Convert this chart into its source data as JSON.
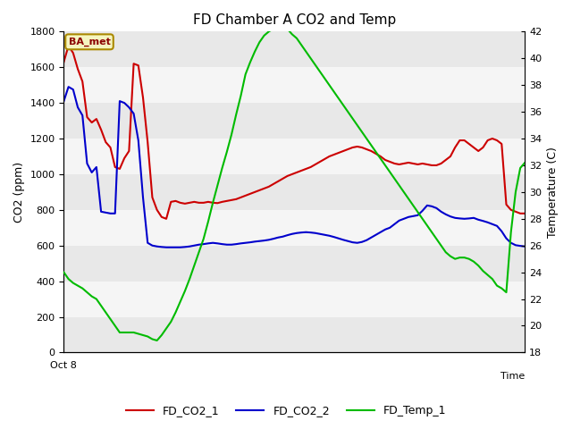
{
  "title": "FD Chamber A CO2 and Temp",
  "ylabel_left": "CO2 (ppm)",
  "ylabel_right": "Temperature (C)",
  "legend_label": "BA_met",
  "series_labels": [
    "FD_CO2_1",
    "FD_CO2_2",
    "FD_Temp_1"
  ],
  "colors": [
    "#cc0000",
    "#0000cc",
    "#00bb00"
  ],
  "ylim_left": [
    0,
    1800
  ],
  "ylim_right": [
    18,
    42
  ],
  "yticks_left": [
    0,
    200,
    400,
    600,
    800,
    1000,
    1200,
    1400,
    1600,
    1800
  ],
  "yticks_right": [
    18,
    20,
    22,
    24,
    26,
    28,
    30,
    32,
    34,
    36,
    38,
    40,
    42
  ],
  "x_label_start": "Oct 8",
  "background_color": "#ffffff",
  "plot_bg_color": "#ffffff",
  "band_colors": [
    "#e8e8e8",
    "#f5f5f5"
  ],
  "FD_CO2_1": [
    1630,
    1720,
    1680,
    1590,
    1520,
    1320,
    1290,
    1310,
    1250,
    1180,
    1150,
    1040,
    1030,
    1090,
    1130,
    1620,
    1610,
    1430,
    1180,
    870,
    800,
    760,
    750,
    845,
    850,
    840,
    835,
    840,
    845,
    840,
    840,
    845,
    840,
    838,
    845,
    850,
    855,
    860,
    870,
    880,
    890,
    900,
    910,
    920,
    930,
    945,
    960,
    975,
    990,
    1000,
    1010,
    1020,
    1030,
    1040,
    1055,
    1070,
    1085,
    1100,
    1110,
    1120,
    1130,
    1140,
    1150,
    1155,
    1150,
    1140,
    1130,
    1115,
    1100,
    1080,
    1070,
    1060,
    1055,
    1060,
    1065,
    1060,
    1055,
    1060,
    1055,
    1050,
    1050,
    1060,
    1080,
    1100,
    1150,
    1190,
    1190,
    1170,
    1150,
    1130,
    1150,
    1190,
    1200,
    1190,
    1170,
    830,
    800,
    790,
    780,
    780
  ],
  "FD_CO2_2": [
    1410,
    1490,
    1475,
    1375,
    1330,
    1060,
    1010,
    1040,
    790,
    785,
    780,
    780,
    1410,
    1400,
    1375,
    1340,
    1190,
    870,
    615,
    600,
    595,
    592,
    590,
    590,
    590,
    590,
    592,
    595,
    600,
    605,
    608,
    612,
    615,
    612,
    608,
    605,
    605,
    608,
    612,
    615,
    618,
    622,
    625,
    628,
    632,
    638,
    645,
    650,
    658,
    665,
    670,
    673,
    675,
    673,
    670,
    665,
    660,
    655,
    648,
    640,
    632,
    625,
    618,
    615,
    620,
    630,
    645,
    660,
    675,
    690,
    700,
    720,
    740,
    750,
    760,
    765,
    770,
    795,
    825,
    820,
    810,
    790,
    775,
    763,
    755,
    752,
    750,
    752,
    755,
    745,
    738,
    730,
    720,
    710,
    680,
    640,
    615,
    602,
    598,
    595
  ],
  "FD_Temp_1": [
    24.0,
    23.5,
    23.2,
    23.0,
    22.8,
    22.5,
    22.2,
    22.0,
    21.5,
    21.0,
    20.5,
    20.0,
    19.5,
    19.5,
    19.5,
    19.5,
    19.4,
    19.3,
    19.2,
    19.0,
    18.9,
    19.3,
    19.8,
    20.3,
    21.0,
    21.8,
    22.6,
    23.5,
    24.5,
    25.5,
    26.5,
    27.8,
    29.2,
    30.5,
    31.8,
    33.0,
    34.3,
    35.8,
    37.2,
    38.8,
    39.7,
    40.5,
    41.2,
    41.7,
    42.0,
    42.2,
    42.5,
    42.5,
    42.2,
    41.8,
    41.5,
    41.0,
    40.5,
    40.0,
    39.5,
    39.0,
    38.5,
    38.0,
    37.5,
    37.0,
    36.5,
    36.0,
    35.5,
    35.0,
    34.5,
    34.0,
    33.5,
    33.0,
    32.5,
    32.0,
    31.5,
    31.0,
    30.5,
    30.0,
    29.5,
    29.0,
    28.5,
    28.0,
    27.5,
    27.0,
    26.5,
    26.0,
    25.5,
    25.2,
    25.0,
    25.1,
    25.1,
    25.0,
    24.8,
    24.5,
    24.1,
    23.8,
    23.5,
    23.0,
    22.8,
    22.5,
    27.0,
    30.0,
    31.8,
    32.2
  ]
}
